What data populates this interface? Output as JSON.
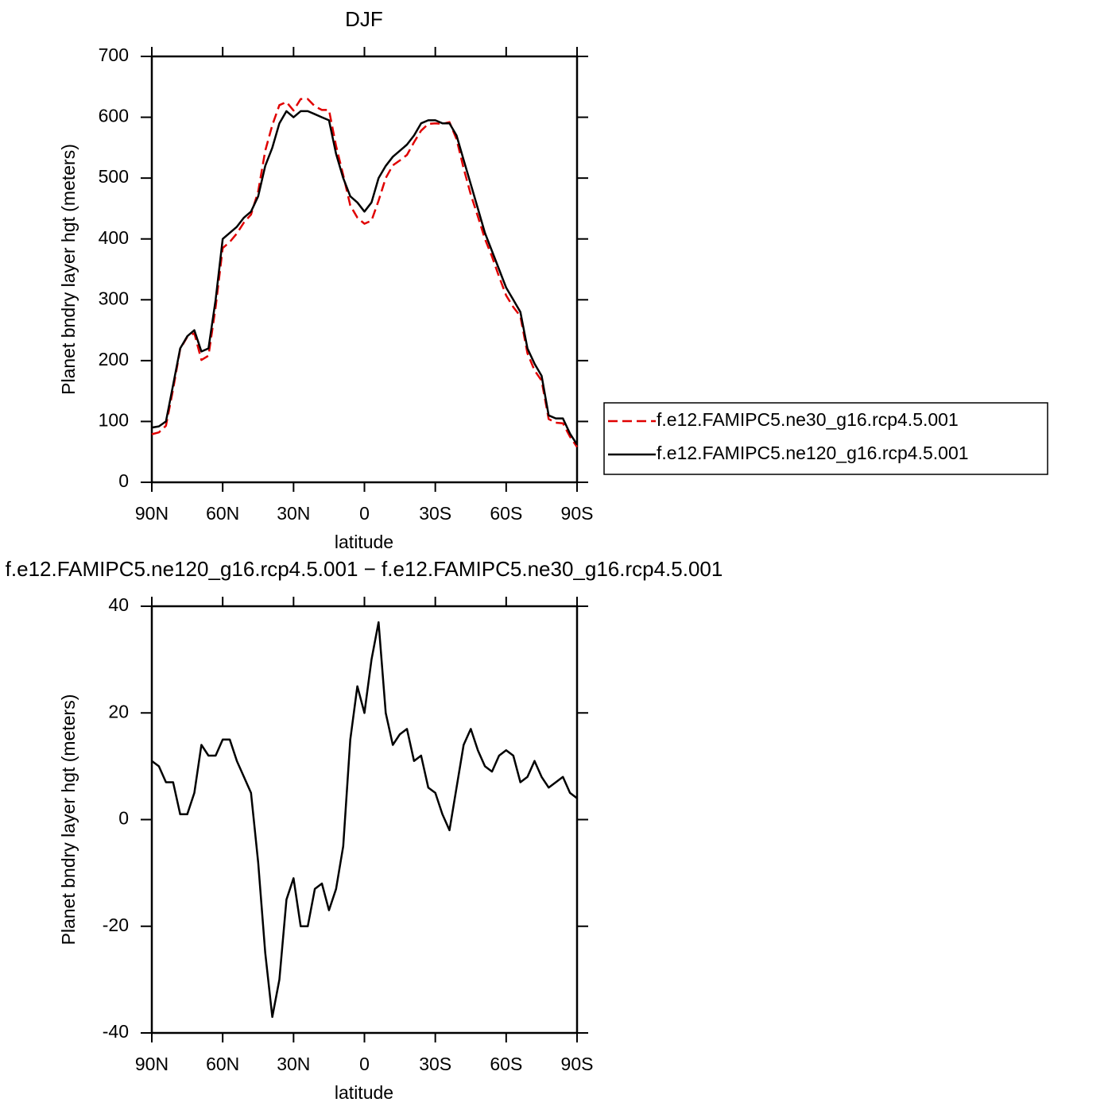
{
  "chart_data": [
    {
      "type": "line",
      "title": "DJF",
      "xlabel": "latitude",
      "ylabel": "Planet bndry layer hgt (meters)",
      "x": [
        90,
        87,
        84,
        81,
        78,
        75,
        72,
        69,
        66,
        63,
        60,
        57,
        54,
        51,
        48,
        45,
        42,
        39,
        36,
        33,
        30,
        27,
        24,
        21,
        18,
        15,
        12,
        9,
        6,
        3,
        0,
        -3,
        -6,
        -9,
        -12,
        -15,
        -18,
        -21,
        -24,
        -27,
        -30,
        -33,
        -36,
        -39,
        -42,
        -45,
        -48,
        -51,
        -54,
        -57,
        -60,
        -63,
        -66,
        -69,
        -72,
        -75,
        -78,
        -81,
        -84,
        -87,
        -90
      ],
      "series": [
        {
          "name": "f.e12.FAMIPC5.ne30_g16.rcp4.5.001",
          "color": "#e00000",
          "linestyle": "dashed",
          "values": [
            79,
            82,
            93,
            153,
            219,
            239,
            245,
            201,
            208,
            288,
            385,
            395,
            409,
            427,
            440,
            478,
            545,
            587,
            620,
            625,
            611,
            630,
            630,
            618,
            612,
            612,
            553,
            505,
            455,
            435,
            425,
            430,
            463,
            500,
            521,
            529,
            538,
            559,
            578,
            589,
            590,
            589,
            592,
            564,
            516,
            473,
            437,
            400,
            371,
            338,
            307,
            288,
            273,
            212,
            184,
            167,
            104,
            98,
            97,
            75,
            58
          ]
        },
        {
          "name": "f.e12.FAMIPC5.ne120_g16.rcp4.5.001",
          "color": "#000000",
          "linestyle": "solid",
          "values": [
            90,
            92,
            100,
            160,
            220,
            240,
            250,
            215,
            220,
            300,
            400,
            410,
            420,
            435,
            445,
            470,
            520,
            550,
            590,
            610,
            600,
            610,
            610,
            605,
            600,
            595,
            540,
            500,
            470,
            460,
            445,
            460,
            500,
            520,
            535,
            545,
            555,
            570,
            590,
            595,
            595,
            590,
            590,
            570,
            530,
            490,
            450,
            410,
            380,
            350,
            320,
            300,
            280,
            220,
            195,
            175,
            110,
            105,
            105,
            80,
            62
          ]
        }
      ],
      "xlim": [
        90,
        -90
      ],
      "xticks": [
        {
          "value": 90,
          "label": "90N"
        },
        {
          "value": 60,
          "label": "60N"
        },
        {
          "value": 30,
          "label": "30N"
        },
        0,
        {
          "value": -30,
          "label": "30S"
        },
        {
          "value": -60,
          "label": "60S"
        },
        {
          "value": -90,
          "label": "90S"
        }
      ],
      "ylim": [
        0,
        700
      ],
      "yticks": [
        0,
        100,
        200,
        300,
        400,
        500,
        600,
        700
      ],
      "legend": "right"
    },
    {
      "type": "line",
      "title": "f.e12.FAMIPC5.ne120_g16.rcp4.5.001 − f.e12.FAMIPC5.ne30_g16.rcp4.5.001",
      "xlabel": "latitude",
      "ylabel": "Planet bndry layer hgt (meters)",
      "x": [
        90,
        87,
        84,
        81,
        78,
        75,
        72,
        69,
        66,
        63,
        60,
        57,
        54,
        51,
        48,
        45,
        42,
        39,
        36,
        33,
        30,
        27,
        24,
        21,
        18,
        15,
        12,
        9,
        6,
        3,
        0,
        -3,
        -6,
        -9,
        -12,
        -15,
        -18,
        -21,
        -24,
        -27,
        -30,
        -33,
        -36,
        -39,
        -42,
        -45,
        -48,
        -51,
        -54,
        -57,
        -60,
        -63,
        -66,
        -69,
        -72,
        -75,
        -78,
        -81,
        -84,
        -87,
        -90
      ],
      "series": [
        {
          "color": "#000000",
          "linestyle": "solid",
          "values": [
            11,
            10,
            7,
            7,
            1,
            1,
            5,
            14,
            12,
            12,
            15,
            15,
            11,
            8,
            5,
            -8,
            -25,
            -37,
            -30,
            -15,
            -11,
            -20,
            -20,
            -13,
            -12,
            -17,
            -13,
            -5,
            15,
            25,
            20,
            30,
            37,
            20,
            14,
            16,
            17,
            11,
            12,
            6,
            5,
            1,
            -2,
            6,
            14,
            17,
            13,
            10,
            9,
            12,
            13,
            12,
            7,
            8,
            11,
            8,
            6,
            7,
            8,
            5,
            4
          ]
        }
      ],
      "xlim": [
        90,
        -90
      ],
      "xticks": [
        {
          "value": 90,
          "label": "90N"
        },
        {
          "value": 60,
          "label": "60N"
        },
        {
          "value": 30,
          "label": "30N"
        },
        0,
        {
          "value": -30,
          "label": "30S"
        },
        {
          "value": -60,
          "label": "60S"
        },
        {
          "value": -90,
          "label": "90S"
        }
      ],
      "ylim": [
        -40,
        40
      ],
      "yticks": [
        -40,
        -20,
        0,
        20,
        40
      ]
    }
  ]
}
